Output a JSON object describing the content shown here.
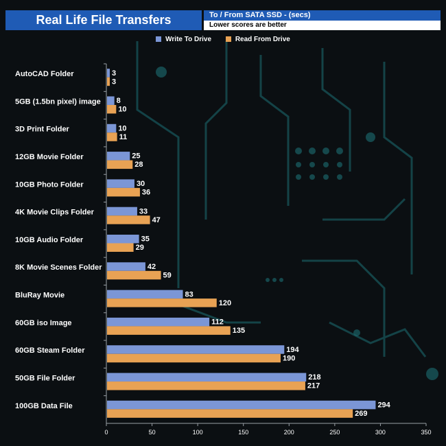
{
  "header": {
    "title": "Real Life File Transfers",
    "subtitle": "To /  From SATA SSD - (secs)",
    "note": "Lower scores are better"
  },
  "colors": {
    "title_bg": "#1f5bb5",
    "write": "#7b96d6",
    "read": "#e8a254",
    "background": "#0b0f12",
    "circuit": "#1c6e73"
  },
  "chart_data": {
    "type": "bar",
    "orientation": "horizontal",
    "title": "Real Life File Transfers",
    "subtitle": "To /  From SATA SSD - (secs)",
    "note": "Lower scores are better",
    "categories": [
      "AutoCAD Folder",
      "5GB (1.5bn pixel) image",
      "3D Print Folder",
      "12GB Movie Folder",
      "10GB Photo Folder",
      "4K Movie Clips Folder",
      "10GB Audio Folder",
      "8K Movie Scenes Folder",
      "BluRay Movie",
      "60GB iso Image",
      "60GB Steam Folder",
      "50GB File Folder",
      "100GB Data File"
    ],
    "series": [
      {
        "name": "Write To  Drive",
        "color": "#7b96d6",
        "values": [
          3,
          8,
          10,
          25,
          30,
          33,
          35,
          42,
          83,
          112,
          194,
          218,
          294
        ]
      },
      {
        "name": "Read From  Drive",
        "color": "#e8a254",
        "values": [
          3,
          10,
          11,
          28,
          36,
          47,
          29,
          59,
          120,
          135,
          190,
          217,
          269
        ]
      }
    ],
    "xlim": [
      0,
      350
    ],
    "xticks": [
      0,
      50,
      100,
      150,
      200,
      250,
      300,
      350
    ],
    "legend": "top",
    "grid": false
  }
}
